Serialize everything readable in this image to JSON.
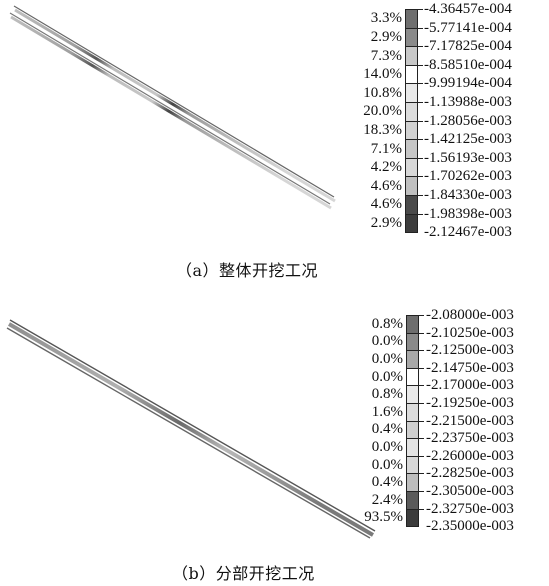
{
  "figures": [
    {
      "id": "a",
      "caption": "（a）整体开挖工况",
      "legend": {
        "values": [
          "-4.36457e-004",
          "-5.77141e-004",
          "-7.17825e-004",
          "-8.58510e-004",
          "-9.99194e-004",
          "-1.13988e-003",
          "-1.28056e-003",
          "-1.42125e-003",
          "-1.56193e-003",
          "-1.70262e-003",
          "-1.84330e-003",
          "-1.98398e-003",
          "-2.12467e-003"
        ],
        "percents": [
          "3.3%",
          "2.9%",
          "7.3%",
          "14.0%",
          "10.8%",
          "20.0%",
          "18.3%",
          "7.1%",
          "4.2%",
          "4.6%",
          "4.6%",
          "2.9%"
        ],
        "colors": [
          "#6e6e6e",
          "#8a8a8a",
          "#c8c8c8",
          "#ffffff",
          "#e9e9e9",
          "#dcdcdc",
          "#d2d2d2",
          "#c6c6c6",
          "#d8d8d8",
          "#c0c0c0",
          "#4a4a4a",
          "#3c3c3c"
        ]
      }
    },
    {
      "id": "b",
      "caption": "（b）分部开挖工况",
      "legend": {
        "values": [
          "-2.08000e-003",
          "-2.10250e-003",
          "-2.12500e-003",
          "-2.14750e-003",
          "-2.17000e-003",
          "-2.19250e-003",
          "-2.21500e-003",
          "-2.23750e-003",
          "-2.26000e-003",
          "-2.28250e-003",
          "-2.30500e-003",
          "-2.32750e-003",
          "-2.35000e-003"
        ],
        "percents": [
          "0.8%",
          "0.0%",
          "0.0%",
          "0.0%",
          "0.8%",
          "1.6%",
          "0.4%",
          "0.0%",
          "0.0%",
          "0.4%",
          "2.4%",
          "93.5%"
        ],
        "colors": [
          "#6e6e6e",
          "#8a8a8a",
          "#a8a8a8",
          "#ffffff",
          "#e9e9e9",
          "#dcdcdc",
          "#d0d0d0",
          "#e4e4e4",
          "#d8d8d8",
          "#bdbdbd",
          "#5a5a5a",
          "#3c3c3c"
        ]
      }
    }
  ]
}
